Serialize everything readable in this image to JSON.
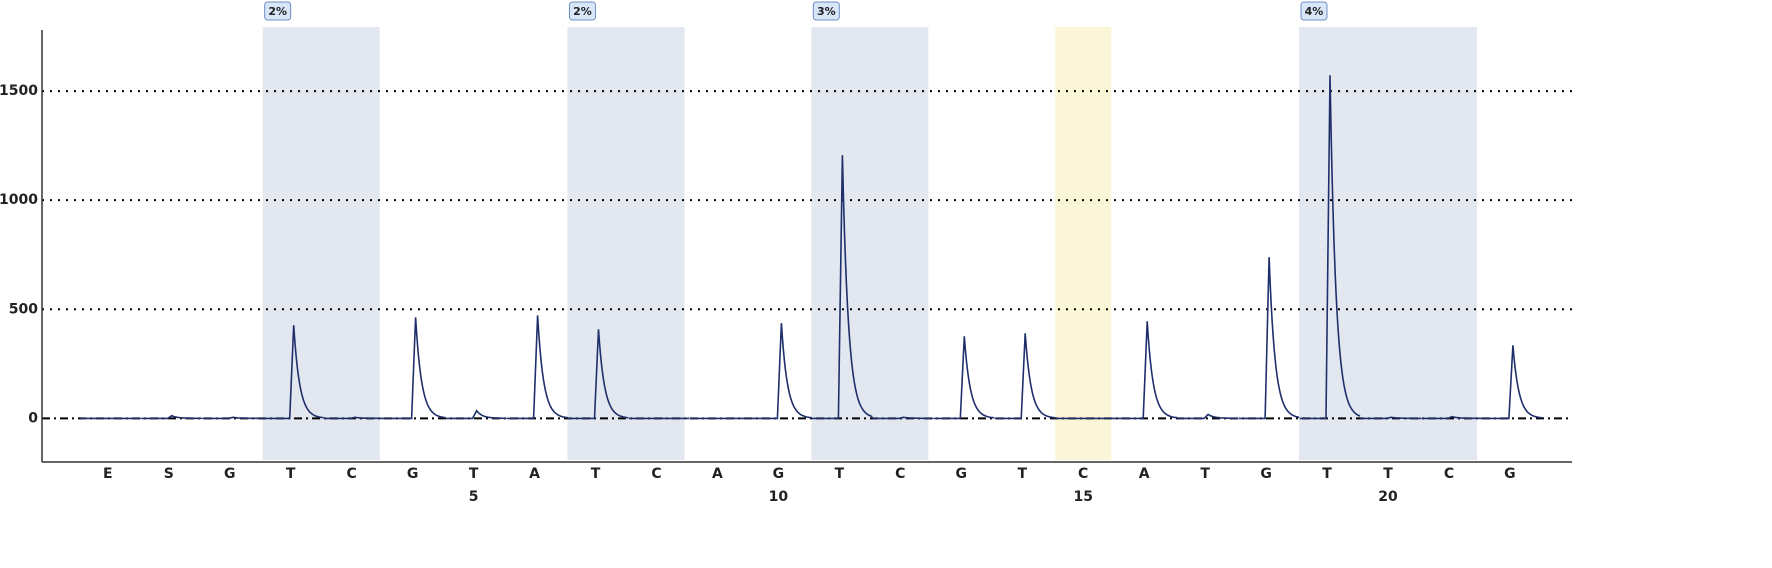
{
  "chart_data": {
    "type": "pyrogram",
    "categories": [
      "E",
      "S",
      "G",
      "T",
      "C",
      "G",
      "T",
      "A",
      "T",
      "C",
      "A",
      "G",
      "T",
      "C",
      "G",
      "T",
      "C",
      "A",
      "T",
      "G",
      "T",
      "T",
      "C",
      "G"
    ],
    "position_labels": [
      null,
      null,
      null,
      null,
      null,
      null,
      5,
      null,
      null,
      null,
      null,
      10,
      null,
      null,
      null,
      null,
      15,
      null,
      null,
      null,
      null,
      20,
      null,
      null
    ],
    "values": [
      0,
      12,
      5,
      427,
      5,
      463,
      35,
      472,
      408,
      0,
      0,
      436,
      1206,
      5,
      376,
      390,
      0,
      445,
      18,
      739,
      1573,
      5,
      8,
      335
    ],
    "color": "#1f2f6b",
    "ylim": [
      -200,
      1780
    ],
    "yticks": [
      0,
      500,
      1000,
      1500
    ],
    "grid": true,
    "regions": [
      {
        "start": 3,
        "end": 4,
        "label": "2%",
        "color": "#e3e8f0"
      },
      {
        "start": 8,
        "end": 9,
        "label": "2%",
        "color": "#e3e8f0"
      },
      {
        "start": 12,
        "end": 13,
        "label": "3%",
        "color": "#e3e8f0"
      },
      {
        "start": 16,
        "end": 16,
        "color": "#fcf6d8"
      },
      {
        "start": 20,
        "end": 22,
        "label": "4%",
        "color": "#e3e8f0"
      }
    ]
  }
}
